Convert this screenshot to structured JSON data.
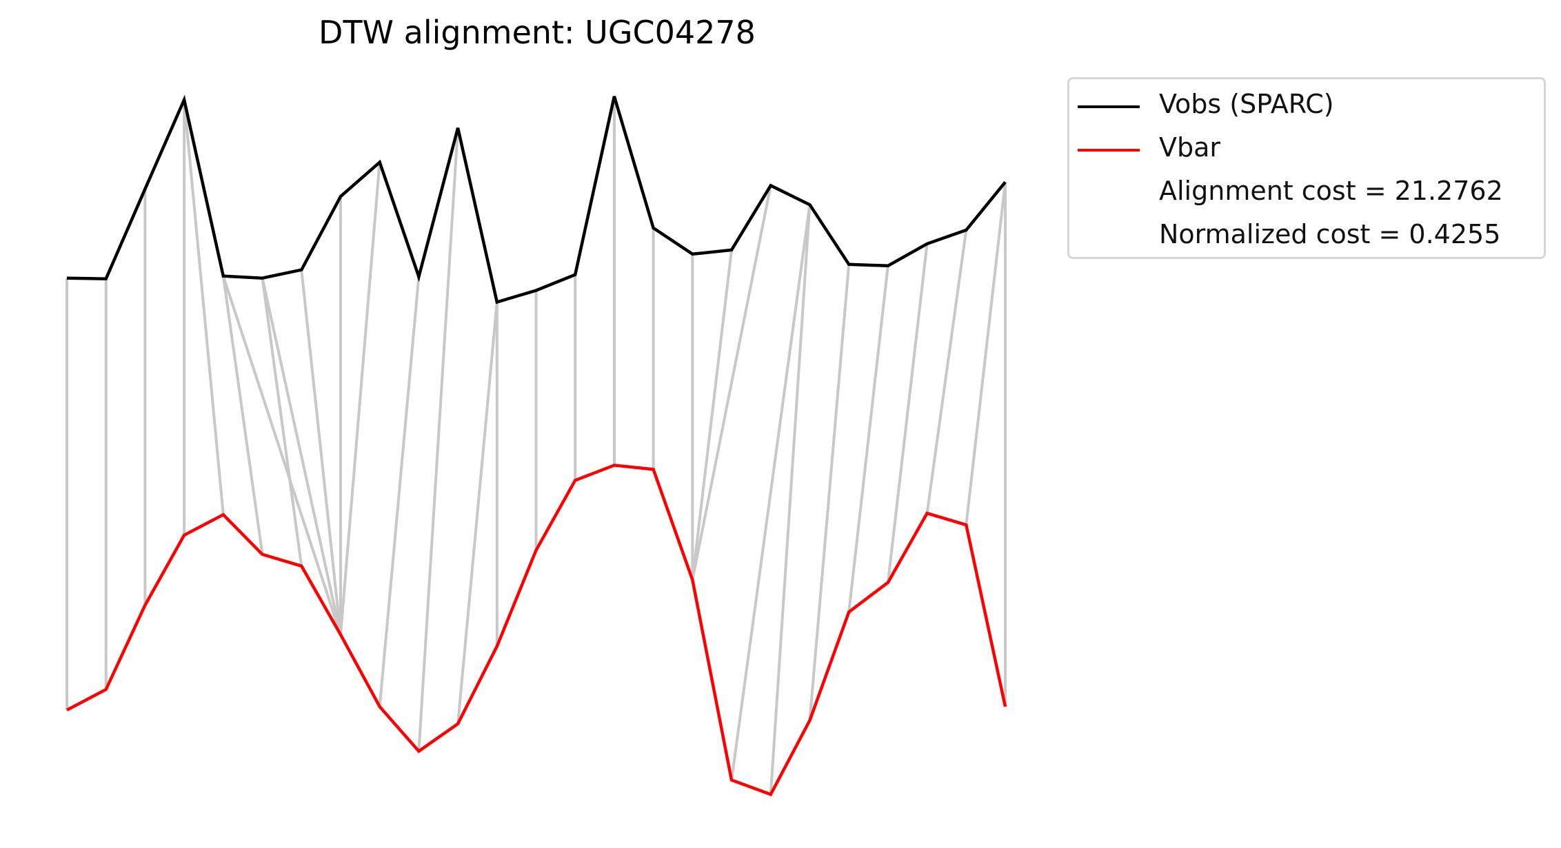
{
  "chart_data": {
    "type": "line",
    "title": "DTW alignment: UGC04278",
    "axes_visible": false,
    "series": [
      {
        "name": "Vobs (SPARC)",
        "color": "#000000",
        "values": [
          0.645,
          0.644,
          0.775,
          0.905,
          0.648,
          0.645,
          0.657,
          0.764,
          0.814,
          0.647,
          0.864,
          0.61,
          0.627,
          0.65,
          0.91,
          0.718,
          0.68,
          0.686,
          0.78,
          0.752,
          0.665,
          0.663,
          0.695,
          0.715,
          0.785
        ]
      },
      {
        "name": "Vbar",
        "color": "#ff0000",
        "values": [
          0.015,
          0.045,
          0.168,
          0.27,
          0.3,
          0.242,
          0.225,
          0.125,
          0.02,
          -0.045,
          -0.005,
          0.108,
          0.248,
          0.35,
          0.372,
          0.366,
          0.205,
          -0.087,
          -0.108,
          0.0,
          0.158,
          0.201,
          0.302,
          0.285,
          0.02
        ]
      }
    ],
    "alignment": {
      "color": "#c8c8c8",
      "pairs": [
        [
          0,
          0
        ],
        [
          1,
          1
        ],
        [
          2,
          2
        ],
        [
          3,
          3
        ],
        [
          3,
          4
        ],
        [
          4,
          5
        ],
        [
          4,
          7
        ],
        [
          5,
          6
        ],
        [
          5,
          7
        ],
        [
          6,
          7
        ],
        [
          7,
          7
        ],
        [
          8,
          7
        ],
        [
          9,
          8
        ],
        [
          10,
          9
        ],
        [
          11,
          10
        ],
        [
          11,
          11
        ],
        [
          12,
          12
        ],
        [
          13,
          13
        ],
        [
          14,
          14
        ],
        [
          15,
          15
        ],
        [
          16,
          16
        ],
        [
          17,
          16
        ],
        [
          18,
          16
        ],
        [
          19,
          17
        ],
        [
          19,
          18
        ],
        [
          20,
          19
        ],
        [
          21,
          20
        ],
        [
          22,
          21
        ],
        [
          23,
          22
        ],
        [
          24,
          23
        ],
        [
          24,
          24
        ]
      ]
    },
    "ylim": [
      -0.15,
      0.93
    ],
    "legend": {
      "placement": "outside-upper-right",
      "entries": [
        "Vobs (SPARC)",
        "Vbar",
        "Alignment cost = 21.2762",
        "Normalized cost = 0.4255"
      ]
    }
  }
}
